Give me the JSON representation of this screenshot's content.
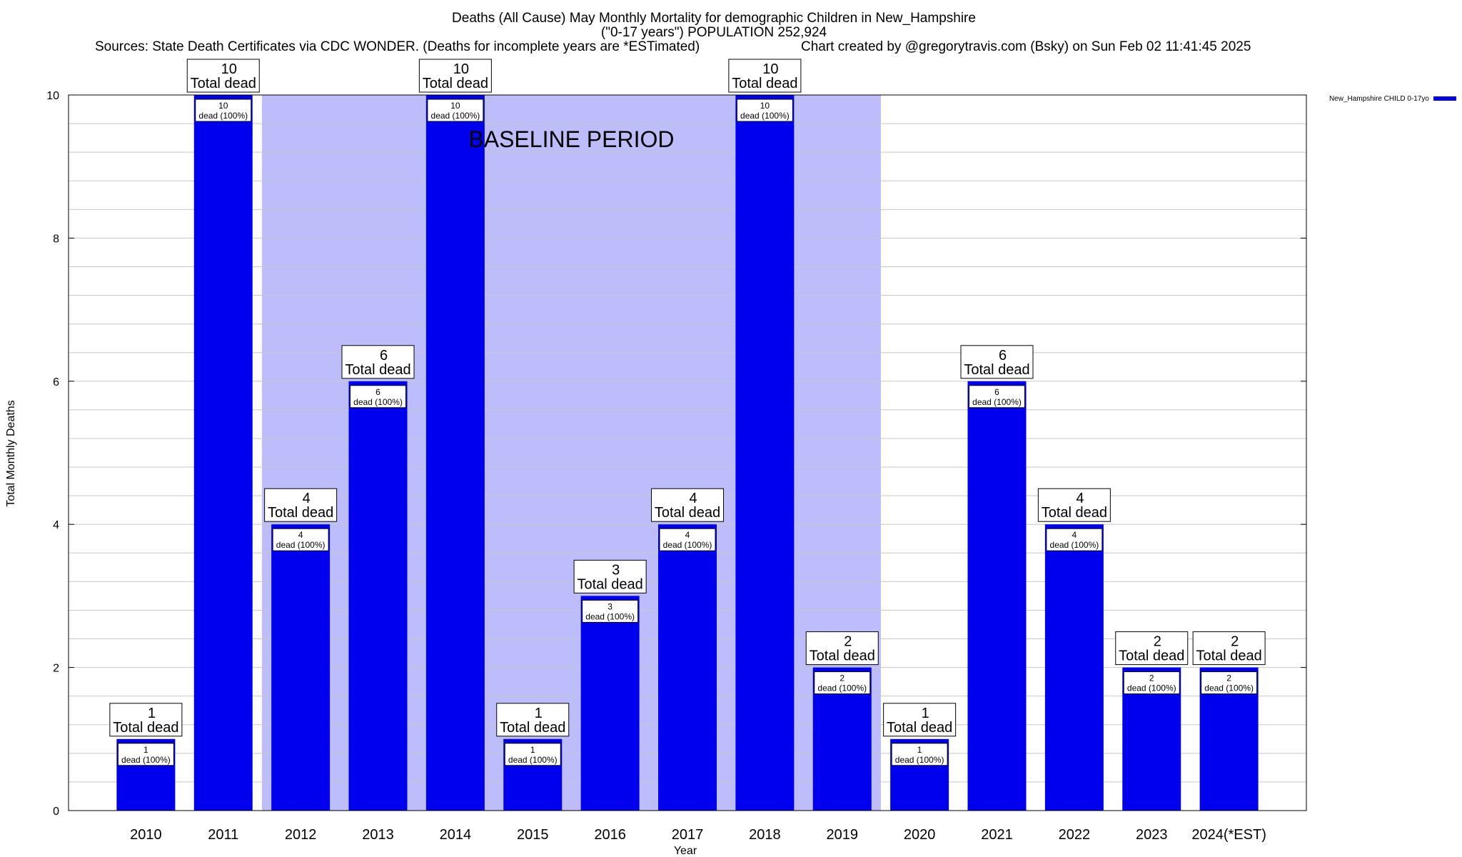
{
  "chart_data": {
    "type": "bar",
    "title_line1": "Deaths (All Cause) May Monthly Mortality for demographic Children in New_Hampshire",
    "title_line2": "(\"0-17 years\") POPULATION 252,924",
    "sources": "Sources: State Death Certificates via CDC WONDER. (Deaths for incomplete years are *ESTimated)",
    "credit": "Chart created by @gregorytravis.com (Bsky) on Sun Feb 02 11:41:45 2025",
    "xlabel": "Year",
    "ylabel": "Total Monthly Deaths",
    "ylim": [
      0,
      10
    ],
    "yticks": [
      "0",
      "2",
      "4",
      "6",
      "8",
      "10"
    ],
    "grid": true,
    "legend_position": "top-right",
    "baseline_label": "BASELINE PERIOD",
    "baseline_range": [
      "2012",
      "2019"
    ],
    "colors": {
      "bar": "#0000ee",
      "baseline": "#bdbdfb",
      "grid": "#c8c8c8"
    },
    "total_label": "Total dead",
    "inner_suffix": "dead (100%)",
    "categories": [
      "2010",
      "2011",
      "2012",
      "2013",
      "2014",
      "2015",
      "2016",
      "2017",
      "2018",
      "2019",
      "2020",
      "2021",
      "2022",
      "2023",
      "2024(*EST)"
    ],
    "series": [
      {
        "name": "New_Hampshire CHILD 0-17yo",
        "values": [
          1,
          10,
          4,
          6,
          10,
          1,
          3,
          4,
          10,
          2,
          1,
          6,
          4,
          2,
          2
        ]
      }
    ]
  }
}
